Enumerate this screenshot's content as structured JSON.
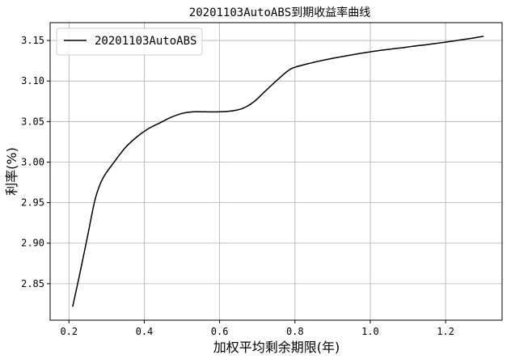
{
  "chart_data": {
    "type": "line",
    "title": "20201103AutoABS到期收益率曲线",
    "xlabel": "加权平均剩余期限(年)",
    "ylabel": "利率(%)",
    "xlim": [
      0.15,
      1.35
    ],
    "ylim": [
      2.805,
      3.172
    ],
    "xticks": [
      0.2,
      0.4,
      0.6,
      0.8,
      1.0,
      1.2
    ],
    "xtick_labels": [
      "0.2",
      "0.4",
      "0.6",
      "0.8",
      "1.0",
      "1.2"
    ],
    "yticks": [
      2.85,
      2.9,
      2.95,
      3.0,
      3.05,
      3.1,
      3.15
    ],
    "ytick_labels": [
      "2.85",
      "2.90",
      "2.95",
      "3.00",
      "3.05",
      "3.10",
      "3.15"
    ],
    "grid": true,
    "legend_position": "top-left",
    "color": "#000000",
    "series": [
      {
        "name": "20201103AutoABS",
        "x": [
          0.21,
          0.23,
          0.25,
          0.27,
          0.29,
          0.32,
          0.35,
          0.38,
          0.41,
          0.44,
          0.47,
          0.5,
          0.53,
          0.56,
          0.6,
          0.63,
          0.66,
          0.69,
          0.72,
          0.75,
          0.78,
          0.8,
          0.85,
          0.9,
          1.0,
          1.1,
          1.2,
          1.3
        ],
        "y": [
          2.822,
          2.865,
          2.91,
          2.955,
          2.98,
          3.0,
          3.018,
          3.031,
          3.041,
          3.048,
          3.055,
          3.06,
          3.062,
          3.062,
          3.062,
          3.063,
          3.066,
          3.074,
          3.087,
          3.1,
          3.112,
          3.117,
          3.123,
          3.128,
          3.136,
          3.142,
          3.148,
          3.155
        ]
      }
    ]
  }
}
